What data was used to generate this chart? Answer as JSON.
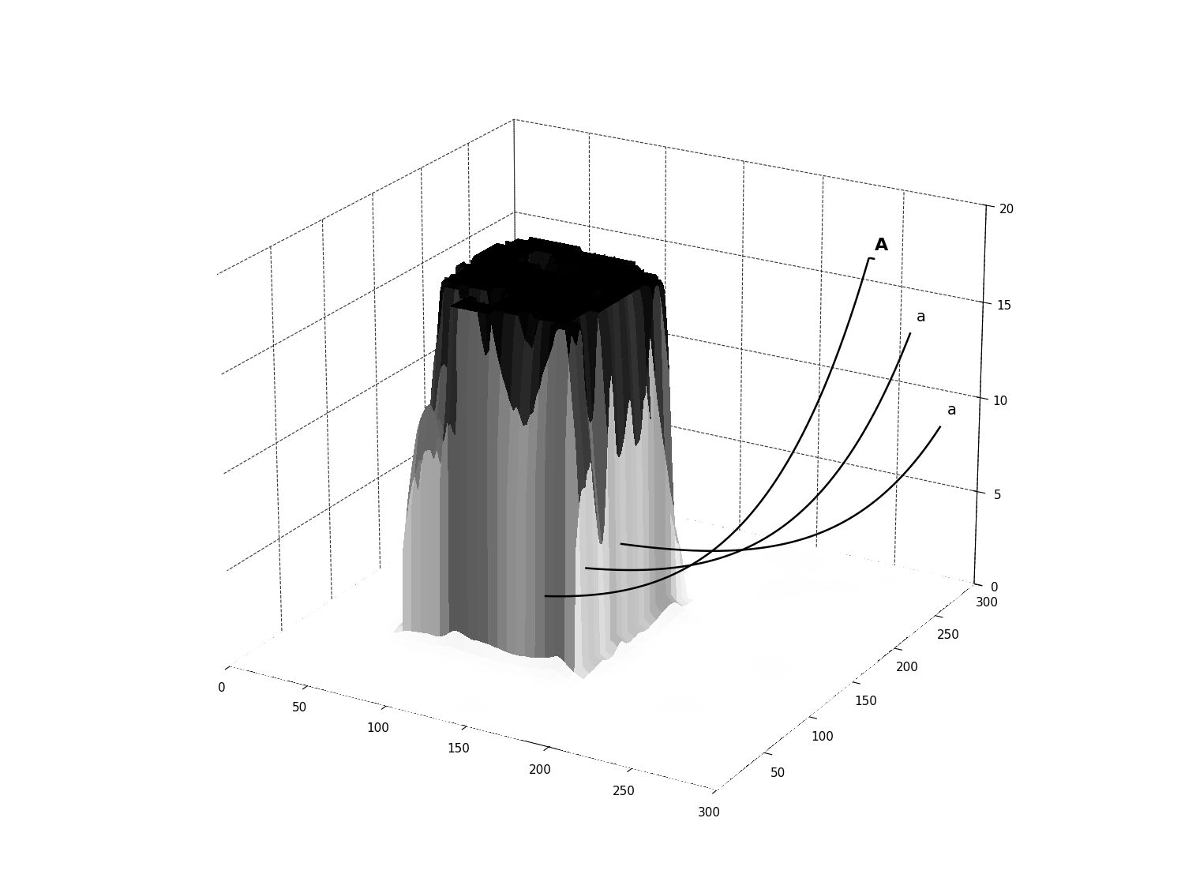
{
  "xlim": [
    0,
    300
  ],
  "ylim": [
    0,
    300
  ],
  "zlim": [
    0,
    20
  ],
  "xticks": [
    0,
    50,
    100,
    150,
    200,
    250,
    300
  ],
  "yticks": [
    50,
    100,
    150,
    200,
    250,
    300
  ],
  "zticks": [
    0,
    5,
    10,
    15,
    20
  ],
  "background_color": "#ffffff",
  "label_A": "A",
  "label_a1": "a",
  "label_a2": "a",
  "curve_color": "#000000",
  "elev": 22,
  "azim": -60,
  "noise_seed": 7,
  "N_grid": 150,
  "spike_x_min": 60,
  "spike_x_max": 170,
  "spike_y_min": 80,
  "spike_y_max": 200,
  "spike_amplitude": 17.5
}
